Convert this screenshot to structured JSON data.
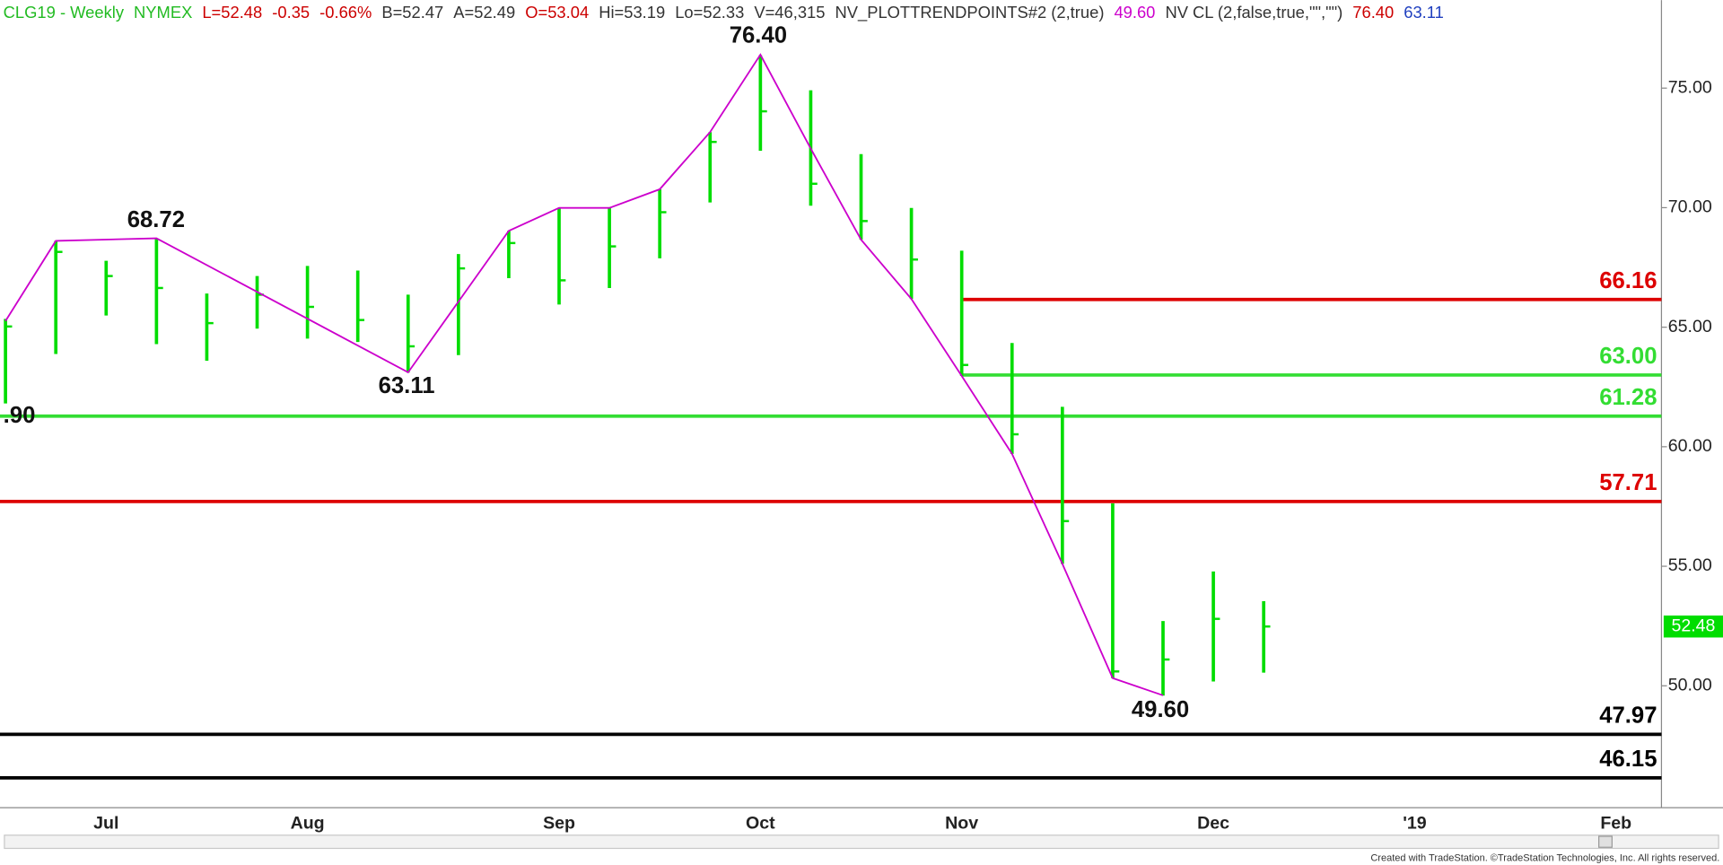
{
  "chart_data": {
    "type": "hlc",
    "header": [
      {
        "text": "CLG19 - Weekly",
        "color": "#22bb22"
      },
      {
        "text": "NYMEX",
        "color": "#22bb22"
      },
      {
        "text": "L=52.48",
        "color": "#cc0000"
      },
      {
        "text": "-0.35",
        "color": "#cc0000"
      },
      {
        "text": "-0.66%",
        "color": "#cc0000"
      },
      {
        "text": "B=52.47",
        "color": "#333333"
      },
      {
        "text": "A=52.49",
        "color": "#333333"
      },
      {
        "text": "O=53.04",
        "color": "#cc0000"
      },
      {
        "text": "Hi=53.19",
        "color": "#333333"
      },
      {
        "text": "Lo=52.33",
        "color": "#333333"
      },
      {
        "text": "V=46,315",
        "color": "#333333"
      },
      {
        "text": "NV_PLOTTRENDPOINTS#2 (2,true)",
        "color": "#333333"
      },
      {
        "text": "49.60",
        "color": "#cc00cc"
      },
      {
        "text": "NV CL (2,false,true,\"\",\"\")",
        "color": "#333333"
      },
      {
        "text": "76.40",
        "color": "#cc0000"
      },
      {
        "text": "63.11",
        "color": "#1f3fbf"
      }
    ],
    "categories": [
      null,
      null,
      "Jul",
      null,
      null,
      null,
      "Aug",
      null,
      null,
      null,
      null,
      "Sep",
      null,
      null,
      null,
      "Oct",
      null,
      null,
      null,
      "Nov",
      null,
      null,
      null,
      null,
      "Dec",
      null,
      null,
      null,
      "'19",
      null,
      null,
      null,
      "Feb"
    ],
    "high": [
      65.35,
      68.61,
      67.78,
      68.7,
      66.41,
      67.14,
      67.56,
      67.37,
      66.36,
      68.06,
      69.03,
      69.99,
      69.99,
      70.77,
      73.16,
      76.38,
      74.91,
      72.24,
      69.99,
      68.2,
      64.34,
      61.67,
      57.63,
      52.71,
      54.78,
      53.54,
      null,
      null,
      null,
      null,
      null,
      null,
      null
    ],
    "low": [
      61.81,
      63.88,
      65.49,
      64.29,
      63.6,
      64.94,
      64.52,
      64.38,
      63.1,
      63.83,
      67.05,
      65.95,
      66.64,
      67.88,
      70.22,
      72.38,
      70.08,
      68.66,
      66.18,
      62.96,
      59.7,
      55.1,
      50.32,
      49.59,
      50.18,
      50.55,
      null,
      null,
      null,
      null,
      null,
      null,
      null
    ],
    "close": [
      65.03,
      68.15,
      67.14,
      66.64,
      65.17,
      66.36,
      65.85,
      65.3,
      64.2,
      67.46,
      68.52,
      66.96,
      68.38,
      69.81,
      72.75,
      74.03,
      71.0,
      69.44,
      67.83,
      63.42,
      60.52,
      56.89,
      50.6,
      51.1,
      52.8,
      52.48,
      null,
      null,
      null,
      null,
      null,
      null,
      null
    ],
    "color": "#00dd00",
    "trend": {
      "color": "#cc00cc",
      "x": [
        0,
        1,
        3,
        8,
        10,
        11,
        12,
        13,
        14,
        15,
        16,
        17,
        18,
        19,
        20,
        21,
        22,
        23
      ],
      "values": [
        65.26,
        68.61,
        68.72,
        63.11,
        69.03,
        69.99,
        69.99,
        70.77,
        73.16,
        76.4,
        72.47,
        68.66,
        66.18,
        62.96,
        59.7,
        55.1,
        50.32,
        49.6
      ]
    },
    "annotations": [
      ".90",
      "68.72",
      "63.11",
      "76.40",
      "49.60"
    ],
    "levels": [
      {
        "value": 66.16,
        "label": "66.16",
        "color": "#dd0000",
        "from": 19
      },
      {
        "value": 63,
        "label": "63.00",
        "color": "#33dd33",
        "from": 19
      },
      {
        "value": 61.28,
        "label": "61.28",
        "color": "#33dd33"
      },
      {
        "value": 57.71,
        "label": "57.71",
        "color": "#dd0000"
      },
      {
        "value": 47.97,
        "label": "47.97",
        "color": "#000000"
      },
      {
        "value": 46.15,
        "label": "46.15",
        "color": "#000000"
      }
    ],
    "ylim": [
      44.9,
      78.68
    ],
    "yticks": [
      {
        "value": 50,
        "label": "50.00"
      },
      {
        "value": 55,
        "label": "55.00"
      },
      {
        "value": 60,
        "label": "60.00"
      },
      {
        "value": 65,
        "label": "65.00"
      },
      {
        "value": 70,
        "label": "70.00"
      },
      {
        "value": 75,
        "label": "75.00"
      }
    ],
    "footer": "Created with TradeStation. ©TradeStation Technologies, Inc. All rights reserved."
  }
}
